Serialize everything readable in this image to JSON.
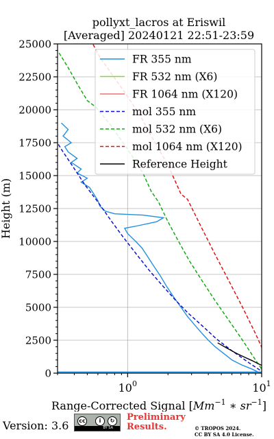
{
  "chart_data": {
    "type": "line",
    "title_line1": "pollyxt_lacros at Eriswil",
    "title_line2": "[Averaged] 20240121 22:51-23:59",
    "xlabel_text": "Range-Corrected Signal [",
    "xlabel_unit": "Mm",
    "xlabel_unit2": "sr",
    "xlabel_exp": "−1",
    "xlabel_close": "]",
    "ylabel": "Height (m)",
    "xscale": "log",
    "xlim": [
      0.3,
      10
    ],
    "ylim": [
      0,
      25000
    ],
    "yticks": [
      0,
      2500,
      5000,
      7500,
      10000,
      12500,
      15000,
      17500,
      20000,
      22500,
      25000
    ],
    "ytick_labels": [
      "0",
      "2500",
      "5000",
      "7500",
      "10000",
      "12500",
      "15000",
      "17500",
      "20000",
      "22500",
      "25000"
    ],
    "xticks_major": [
      1,
      10
    ],
    "xtick_labels": [
      {
        "base": "10",
        "exp": "0"
      },
      {
        "base": "10",
        "exp": "1"
      }
    ],
    "grid": true,
    "legend_position": "top-right",
    "series": [
      {
        "name": "FR 355 nm",
        "color": "#1f8fe0",
        "style": "solid",
        "points": [
          [
            10.0,
            30
          ],
          [
            9.5,
            60
          ],
          [
            8.5,
            300
          ],
          [
            7.0,
            650
          ],
          [
            6.0,
            1000
          ],
          [
            5.2,
            1500
          ],
          [
            4.5,
            2000
          ],
          [
            4.0,
            2500
          ],
          [
            3.6,
            3000
          ],
          [
            3.2,
            3600
          ],
          [
            2.8,
            4300
          ],
          [
            2.5,
            5000
          ],
          [
            2.2,
            5800
          ],
          [
            1.95,
            6600
          ],
          [
            1.75,
            7400
          ],
          [
            1.55,
            8200
          ],
          [
            1.4,
            8900
          ],
          [
            1.28,
            9500
          ],
          [
            1.15,
            10000
          ],
          [
            1.0,
            10600
          ],
          [
            0.95,
            11000
          ],
          [
            1.2,
            11200
          ],
          [
            1.65,
            11500
          ],
          [
            1.85,
            11800
          ],
          [
            1.3,
            12000
          ],
          [
            0.8,
            12100
          ],
          [
            0.68,
            12300
          ],
          [
            0.62,
            12700
          ],
          [
            0.6,
            13100
          ],
          [
            0.56,
            13600
          ],
          [
            0.52,
            14100
          ],
          [
            0.45,
            14500
          ],
          [
            0.5,
            14800
          ],
          [
            0.42,
            15200
          ],
          [
            0.45,
            15500
          ],
          [
            0.38,
            16000
          ],
          [
            0.42,
            16300
          ],
          [
            0.36,
            16800
          ],
          [
            0.34,
            17200
          ],
          [
            0.38,
            17500
          ],
          [
            0.33,
            18000
          ],
          [
            0.36,
            18500
          ],
          [
            0.32,
            19000
          ]
        ]
      },
      {
        "name": "FR 532 nm (X6)",
        "color": "#7fdc2a",
        "style": "solid",
        "points": []
      },
      {
        "name": "FR 1064 nm (X120)",
        "color": "#f07070",
        "style": "solid",
        "points": []
      },
      {
        "name": "mol 355 nm",
        "color": "#1010cc",
        "style": "dashed",
        "points": [
          [
            10.5,
            0
          ],
          [
            8.0,
            800
          ],
          [
            6.0,
            1700
          ],
          [
            4.6,
            2600
          ],
          [
            3.6,
            3600
          ],
          [
            2.8,
            4600
          ],
          [
            2.25,
            5600
          ],
          [
            1.8,
            6700
          ],
          [
            1.45,
            7800
          ],
          [
            1.17,
            9000
          ],
          [
            0.93,
            10300
          ],
          [
            0.75,
            11600
          ],
          [
            0.6,
            13000
          ],
          [
            0.48,
            14300
          ],
          [
            0.39,
            15700
          ],
          [
            0.32,
            17000
          ],
          [
            0.28,
            18000
          ]
        ]
      },
      {
        "name": "mol 532 nm (X6)",
        "color": "#11aa11",
        "style": "dashed",
        "points": [
          [
            10.5,
            0
          ],
          [
            9.0,
            1000
          ],
          [
            7.2,
            2500
          ],
          [
            5.7,
            4000
          ],
          [
            4.5,
            5500
          ],
          [
            3.6,
            7000
          ],
          [
            2.9,
            8500
          ],
          [
            2.4,
            10000
          ],
          [
            2.0,
            11500
          ],
          [
            1.7,
            13000
          ],
          [
            1.5,
            13800
          ],
          [
            1.3,
            15200
          ],
          [
            1.0,
            17000
          ],
          [
            0.75,
            18800
          ],
          [
            0.58,
            20200
          ],
          [
            0.5,
            20700
          ],
          [
            0.43,
            21800
          ],
          [
            0.36,
            23200
          ],
          [
            0.3,
            24500
          ]
        ]
      },
      {
        "name": "mol 1064 nm (X120)",
        "color": "#dd1111",
        "style": "dashed",
        "points": [
          [
            10.5,
            1500
          ],
          [
            9.0,
            3000
          ],
          [
            7.2,
            5000
          ],
          [
            5.7,
            7000
          ],
          [
            4.5,
            9000
          ],
          [
            3.5,
            11200
          ],
          [
            2.8,
            13200
          ],
          [
            2.5,
            13600
          ],
          [
            2.0,
            15800
          ],
          [
            1.5,
            18000
          ],
          [
            1.25,
            19500
          ],
          [
            1.0,
            21000
          ],
          [
            0.8,
            22400
          ],
          [
            0.62,
            24000
          ],
          [
            0.55,
            25000
          ]
        ]
      },
      {
        "name": "Reference Height",
        "color": "#000000",
        "style": "solid",
        "points": [
          [
            4.7,
            2300
          ],
          [
            5.5,
            1900
          ],
          [
            6.5,
            1500
          ],
          [
            7.5,
            1200
          ],
          [
            8.5,
            950
          ],
          [
            9.5,
            700
          ],
          [
            10.0,
            600
          ]
        ]
      }
    ],
    "flat_baseline": {
      "color": "#1f8fe0",
      "height": 80
    }
  },
  "footer": {
    "version_label": "Version: 3.6",
    "license_badge": "cc-by-sa-badge",
    "badge_text": "BY   SA",
    "preliminary_line1": "Preliminary",
    "preliminary_line2": "Results.",
    "copyright_line1": "© TROPOS 2024.",
    "copyright_line2": "CC BY SA 4.0 License.",
    "preliminary_color": "#ee3333"
  }
}
